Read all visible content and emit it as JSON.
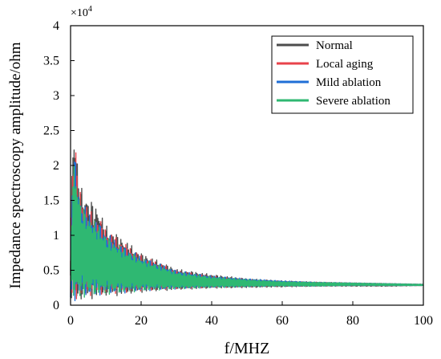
{
  "chart_data": {
    "type": "line",
    "title": "",
    "xlabel": "f/MHZ",
    "ylabel": "Impedance  spectroscopy amplitude/ohm",
    "y_scale_label": "×10",
    "y_scale_exp": "4",
    "xlim": [
      0,
      100
    ],
    "ylim": [
      0,
      4
    ],
    "xticks": [
      "0",
      "20",
      "40",
      "60",
      "80",
      "100"
    ],
    "yticks": [
      "0",
      "0.5",
      "1",
      "1.5",
      "2",
      "2.5",
      "3",
      "3.5",
      "4"
    ],
    "grid": false,
    "legend_position": "top-right",
    "series": [
      {
        "name": "Normal",
        "color": "#4d4d4d",
        "x": [
          0,
          0.5,
          1,
          1.5,
          2,
          3,
          5,
          8,
          10,
          15,
          20,
          30,
          40,
          50,
          60,
          70,
          80,
          90,
          100
        ],
        "env": [
          0.8,
          2.3,
          2.6,
          2.4,
          2.0,
          1.7,
          1.55,
          1.4,
          1.15,
          0.95,
          0.75,
          0.52,
          0.44,
          0.38,
          0.35,
          0.33,
          0.32,
          0.31,
          0.3
        ],
        "floor": [
          0.05,
          0.03,
          0.02,
          0.03,
          0.05,
          0.05,
          0.08,
          0.1,
          0.12,
          0.14,
          0.18,
          0.22,
          0.24,
          0.25,
          0.26,
          0.27,
          0.27,
          0.27,
          0.28
        ]
      },
      {
        "name": "Local aging",
        "color": "#e8434b",
        "x": [
          0,
          0.5,
          1,
          1.5,
          2,
          3,
          5,
          8,
          10,
          15,
          20,
          30,
          40,
          50,
          60,
          70,
          80,
          90,
          100
        ],
        "env": [
          0.7,
          2.0,
          2.35,
          2.2,
          1.9,
          1.6,
          1.4,
          1.25,
          1.1,
          0.9,
          0.72,
          0.5,
          0.42,
          0.37,
          0.34,
          0.33,
          0.32,
          0.31,
          0.3
        ],
        "floor": [
          0.1,
          0.05,
          0.05,
          0.06,
          0.08,
          0.1,
          0.12,
          0.14,
          0.15,
          0.17,
          0.2,
          0.23,
          0.25,
          0.26,
          0.27,
          0.27,
          0.28,
          0.28,
          0.28
        ]
      },
      {
        "name": "Mild ablation",
        "color": "#1f6fd6",
        "x": [
          0,
          0.5,
          1,
          1.5,
          2,
          3,
          5,
          8,
          10,
          15,
          20,
          30,
          40,
          50,
          60,
          70,
          80,
          90,
          100
        ],
        "env": [
          0.7,
          1.9,
          2.15,
          2.1,
          1.8,
          1.5,
          1.35,
          1.2,
          1.05,
          0.85,
          0.7,
          0.5,
          0.42,
          0.38,
          0.35,
          0.33,
          0.32,
          0.31,
          0.3
        ],
        "floor": [
          0.1,
          0.06,
          0.05,
          0.06,
          0.08,
          0.1,
          0.12,
          0.14,
          0.15,
          0.17,
          0.2,
          0.23,
          0.25,
          0.26,
          0.27,
          0.27,
          0.28,
          0.28,
          0.28
        ]
      },
      {
        "name": "Severe ablation",
        "color": "#2fb872",
        "x": [
          0,
          0.5,
          1,
          1.5,
          2,
          3,
          5,
          8,
          10,
          15,
          20,
          30,
          40,
          50,
          60,
          70,
          80,
          90,
          100
        ],
        "env": [
          0.7,
          1.8,
          2.05,
          2.0,
          1.75,
          1.45,
          1.3,
          1.15,
          1.0,
          0.82,
          0.68,
          0.48,
          0.41,
          0.37,
          0.34,
          0.33,
          0.32,
          0.31,
          0.3
        ],
        "floor": [
          0.1,
          0.06,
          0.05,
          0.06,
          0.08,
          0.1,
          0.12,
          0.14,
          0.15,
          0.17,
          0.2,
          0.23,
          0.25,
          0.26,
          0.27,
          0.27,
          0.28,
          0.28,
          0.28
        ]
      }
    ]
  }
}
